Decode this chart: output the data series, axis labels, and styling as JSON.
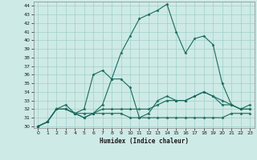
{
  "title": "",
  "xlabel": "Humidex (Indice chaleur)",
  "ylabel": "",
  "bg_color": "#ceeae6",
  "grid_color": "#9fcfca",
  "line_color": "#1a6b5e",
  "xlim": [
    -0.5,
    23.5
  ],
  "ylim": [
    29.8,
    44.5
  ],
  "xticks": [
    0,
    1,
    2,
    3,
    4,
    5,
    6,
    7,
    8,
    9,
    10,
    11,
    12,
    13,
    14,
    15,
    16,
    17,
    18,
    19,
    20,
    21,
    22,
    23
  ],
  "yticks": [
    30,
    31,
    32,
    33,
    34,
    35,
    36,
    37,
    38,
    39,
    40,
    41,
    42,
    43,
    44
  ],
  "series": [
    [
      30.0,
      30.5,
      32.0,
      32.0,
      31.5,
      31.0,
      31.5,
      32.5,
      35.5,
      38.5,
      40.5,
      42.5,
      43.0,
      43.5,
      44.2,
      41.0,
      38.5,
      40.2,
      40.5,
      39.5,
      35.0,
      32.5,
      32.0,
      32.0
    ],
    [
      30.0,
      30.5,
      32.0,
      32.5,
      31.5,
      32.0,
      36.0,
      36.5,
      35.5,
      35.5,
      34.5,
      31.0,
      31.5,
      33.0,
      33.5,
      33.0,
      33.0,
      33.5,
      34.0,
      33.5,
      33.0,
      32.5,
      32.0,
      32.5
    ],
    [
      30.0,
      30.5,
      32.0,
      32.0,
      31.5,
      31.0,
      31.5,
      31.5,
      31.5,
      31.5,
      31.0,
      31.0,
      31.0,
      31.0,
      31.0,
      31.0,
      31.0,
      31.0,
      31.0,
      31.0,
      31.0,
      31.5,
      31.5,
      31.5
    ],
    [
      30.0,
      30.5,
      32.0,
      32.0,
      31.5,
      31.5,
      31.5,
      32.0,
      32.0,
      32.0,
      32.0,
      32.0,
      32.0,
      32.5,
      33.0,
      33.0,
      33.0,
      33.5,
      34.0,
      33.5,
      32.5,
      32.5,
      32.0,
      32.0
    ]
  ]
}
